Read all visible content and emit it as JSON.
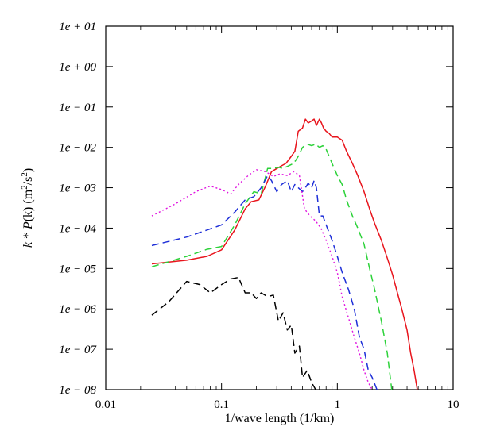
{
  "chart_data": {
    "type": "line",
    "title": "",
    "xlabel": "1/wave length (1/km)",
    "ylabel": "k * P(k) (m²/s²)",
    "ylabel_parts": {
      "k": "k",
      "star": " * ",
      "P": "P",
      "rest": "(k) (m",
      "sup1": "2",
      "slash": "/s",
      "sup2": "2",
      "close": ")"
    },
    "xscale": "log",
    "yscale": "log",
    "xlim": [
      0.01,
      10
    ],
    "ylim": [
      1e-08,
      10
    ],
    "xticks": [
      {
        "value": 0.01,
        "label": "0.01"
      },
      {
        "value": 0.1,
        "label": "0.1"
      },
      {
        "value": 1,
        "label": "1"
      },
      {
        "value": 10,
        "label": "10"
      }
    ],
    "yticks": [
      {
        "value": 1e-08,
        "label": "1e − 08"
      },
      {
        "value": 1e-07,
        "label": "1e − 07"
      },
      {
        "value": 1e-06,
        "label": "1e − 06"
      },
      {
        "value": 1e-05,
        "label": "1e − 05"
      },
      {
        "value": 0.0001,
        "label": "1e − 04"
      },
      {
        "value": 0.001,
        "label": "1e − 03"
      },
      {
        "value": 0.01,
        "label": "1e − 02"
      },
      {
        "value": 0.1,
        "label": "1e − 01"
      },
      {
        "value": 1,
        "label": "1e + 00"
      },
      {
        "value": 10,
        "label": "1e + 01"
      }
    ],
    "grid": false,
    "legend": "none",
    "series": [
      {
        "color": "#e8141c",
        "style": "solid",
        "x": [
          0.025,
          0.05,
          0.075,
          0.1,
          0.13,
          0.16,
          0.18,
          0.21,
          0.24,
          0.27,
          0.3,
          0.33,
          0.36,
          0.4,
          0.43,
          0.46,
          0.5,
          0.53,
          0.56,
          0.6,
          0.63,
          0.66,
          0.7,
          0.73,
          0.76,
          0.8,
          0.85,
          0.9,
          1.0,
          1.1,
          1.2,
          1.35,
          1.5,
          1.7,
          1.9,
          2.1,
          2.4,
          2.7,
          3.0,
          3.3,
          3.6,
          4.0,
          4.3,
          4.6,
          4.9
        ],
        "y": [
          1.3e-05,
          1.6e-05,
          2e-05,
          2.9e-05,
          9e-05,
          0.0003,
          0.00045,
          0.0005,
          0.0011,
          0.0025,
          0.003,
          0.0035,
          0.004,
          0.006,
          0.008,
          0.025,
          0.03,
          0.05,
          0.04,
          0.045,
          0.05,
          0.035,
          0.05,
          0.04,
          0.03,
          0.025,
          0.022,
          0.018,
          0.018,
          0.015,
          0.008,
          0.004,
          0.002,
          0.0008,
          0.0003,
          0.00013,
          5e-05,
          1.8e-05,
          7e-06,
          2.5e-06,
          1e-06,
          3e-07,
          8e-08,
          3e-08,
          1e-08
        ]
      },
      {
        "color": "#2dd23a",
        "style": "dashed",
        "x": [
          0.025,
          0.05,
          0.075,
          0.1,
          0.13,
          0.16,
          0.19,
          0.22,
          0.25,
          0.28,
          0.31,
          0.34,
          0.38,
          0.42,
          0.46,
          0.5,
          0.55,
          0.6,
          0.65,
          0.7,
          0.75,
          0.8,
          0.9,
          1.0,
          1.1,
          1.2,
          1.35,
          1.5,
          1.7,
          1.9,
          2.1,
          2.4,
          2.7,
          2.95
        ],
        "y": [
          1.1e-05,
          2e-05,
          3e-05,
          3.5e-05,
          0.00012,
          0.0004,
          0.0008,
          0.0007,
          0.003,
          0.003,
          0.0032,
          0.003,
          0.0035,
          0.004,
          0.006,
          0.01,
          0.012,
          0.011,
          0.012,
          0.01,
          0.011,
          0.009,
          0.004,
          0.002,
          0.0012,
          0.0005,
          0.0002,
          0.0001,
          4e-05,
          1e-05,
          3e-06,
          5e-07,
          8e-08,
          1e-08
        ]
      },
      {
        "color": "#1e2fd8",
        "style": "dashed",
        "x": [
          0.025,
          0.05,
          0.075,
          0.1,
          0.13,
          0.16,
          0.19,
          0.22,
          0.25,
          0.27,
          0.3,
          0.33,
          0.37,
          0.4,
          0.43,
          0.46,
          0.5,
          0.53,
          0.56,
          0.6,
          0.63,
          0.66,
          0.7,
          0.75,
          0.8,
          0.9,
          1.0,
          1.1,
          1.25,
          1.4,
          1.55,
          1.7,
          1.85,
          2.0,
          2.2
        ],
        "y": [
          3.7e-05,
          6e-05,
          9e-05,
          0.00012,
          0.00025,
          0.0005,
          0.0006,
          0.001,
          0.002,
          0.0015,
          0.0008,
          0.0012,
          0.0015,
          0.0008,
          0.0012,
          0.001,
          0.0008,
          0.001,
          0.0013,
          0.001,
          0.0015,
          0.001,
          0.0002,
          0.0002,
          0.00012,
          5e-05,
          2e-05,
          8e-06,
          3e-06,
          1e-06,
          2e-07,
          1e-07,
          3e-08,
          2e-08,
          1e-08
        ]
      },
      {
        "color": "#e016e0",
        "style": "dotted",
        "x": [
          0.025,
          0.04,
          0.06,
          0.08,
          0.1,
          0.12,
          0.14,
          0.17,
          0.2,
          0.24,
          0.28,
          0.32,
          0.37,
          0.42,
          0.47,
          0.52,
          0.58,
          0.65,
          0.72,
          0.8,
          0.9,
          1.0,
          1.1,
          1.25,
          1.4,
          1.55,
          1.7,
          1.85,
          2.0
        ],
        "y": [
          0.0002,
          0.0004,
          0.0008,
          0.0011,
          0.0009,
          0.0007,
          0.0012,
          0.002,
          0.0028,
          0.0025,
          0.0019,
          0.0022,
          0.002,
          0.0025,
          0.002,
          0.0003,
          0.0002,
          0.00015,
          0.0001,
          5e-05,
          2e-05,
          8e-06,
          2e-06,
          6e-07,
          2e-07,
          8e-08,
          3e-08,
          1.5e-08,
          1e-08
        ]
      },
      {
        "color": "#000000",
        "style": "dashed",
        "x": [
          0.025,
          0.035,
          0.05,
          0.065,
          0.08,
          0.1,
          0.12,
          0.14,
          0.16,
          0.18,
          0.2,
          0.22,
          0.25,
          0.28,
          0.31,
          0.34,
          0.37,
          0.4,
          0.43,
          0.47,
          0.5,
          0.55,
          0.6,
          0.65
        ],
        "y": [
          7e-07,
          1.5e-06,
          4.8e-06,
          4e-06,
          2.5e-06,
          4e-06,
          5.5e-06,
          6e-06,
          2.5e-06,
          2.5e-06,
          1.8e-06,
          2.5e-06,
          2e-06,
          2.2e-06,
          5e-07,
          8e-07,
          3e-07,
          4e-07,
          8e-08,
          1.2e-07,
          2e-08,
          3e-08,
          1.5e-08,
          1e-08
        ]
      }
    ]
  }
}
